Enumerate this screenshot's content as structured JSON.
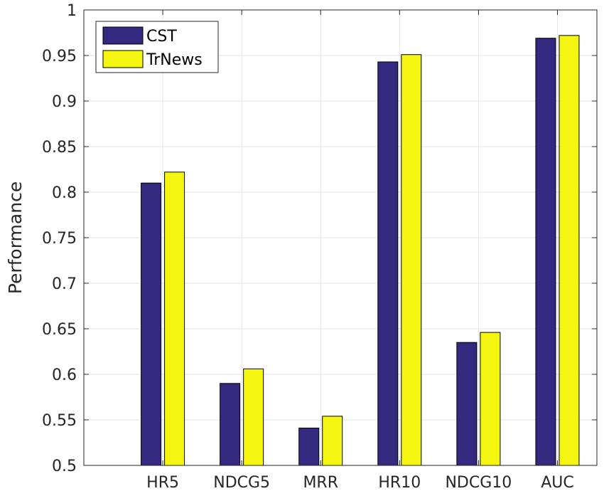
{
  "chart_data": {
    "type": "bar",
    "title": "",
    "xlabel": "",
    "ylabel": "Performance",
    "ylim": [
      0.5,
      1.0
    ],
    "yticks": [
      "0.5",
      "0.55",
      "0.6",
      "0.65",
      "0.7",
      "0.75",
      "0.8",
      "0.85",
      "0.9",
      "0.95",
      "1"
    ],
    "categories": [
      "HR5",
      "NDCG5",
      "MRR",
      "HR10",
      "NDCG10",
      "AUC"
    ],
    "series": [
      {
        "name": "CST",
        "color": "#33297f",
        "values": [
          0.81,
          0.59,
          0.541,
          0.943,
          0.635,
          0.969
        ]
      },
      {
        "name": "TrNews",
        "color": "#f5f512",
        "values": [
          0.822,
          0.606,
          0.554,
          0.951,
          0.646,
          0.972
        ]
      }
    ],
    "grid": true,
    "legend_position": "top-left"
  }
}
